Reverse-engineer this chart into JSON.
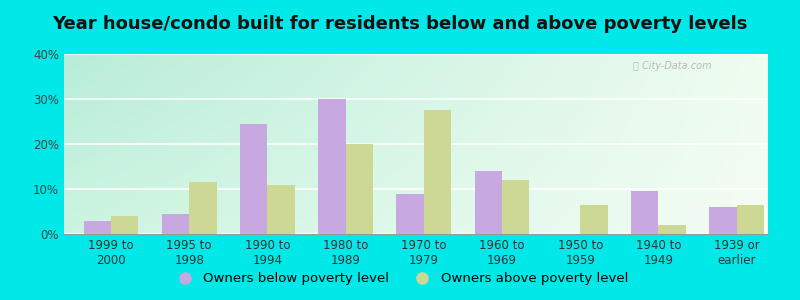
{
  "title": "Year house/condo built for residents below and above poverty levels",
  "categories": [
    "1999 to\n2000",
    "1995 to\n1998",
    "1990 to\n1994",
    "1980 to\n1989",
    "1970 to\n1979",
    "1960 to\n1969",
    "1950 to\n1959",
    "1940 to\n1949",
    "1939 or\nearlier"
  ],
  "below_poverty": [
    3.0,
    4.5,
    24.5,
    30.0,
    9.0,
    14.0,
    0.0,
    9.5,
    6.0
  ],
  "above_poverty": [
    4.0,
    11.5,
    11.0,
    20.0,
    27.5,
    12.0,
    6.5,
    2.0,
    6.5
  ],
  "below_color": "#c8a8e0",
  "above_color": "#cdd894",
  "ylim": [
    0,
    40
  ],
  "yticks": [
    0,
    10,
    20,
    30,
    40
  ],
  "background_outer": "#00e8e8",
  "grid_color": "#ffffff",
  "bar_width": 0.35,
  "title_fontsize": 13,
  "tick_fontsize": 8.5,
  "legend_fontsize": 9.5,
  "bg_top_left": "#b8ede0",
  "bg_bottom_right": "#eef8ee"
}
